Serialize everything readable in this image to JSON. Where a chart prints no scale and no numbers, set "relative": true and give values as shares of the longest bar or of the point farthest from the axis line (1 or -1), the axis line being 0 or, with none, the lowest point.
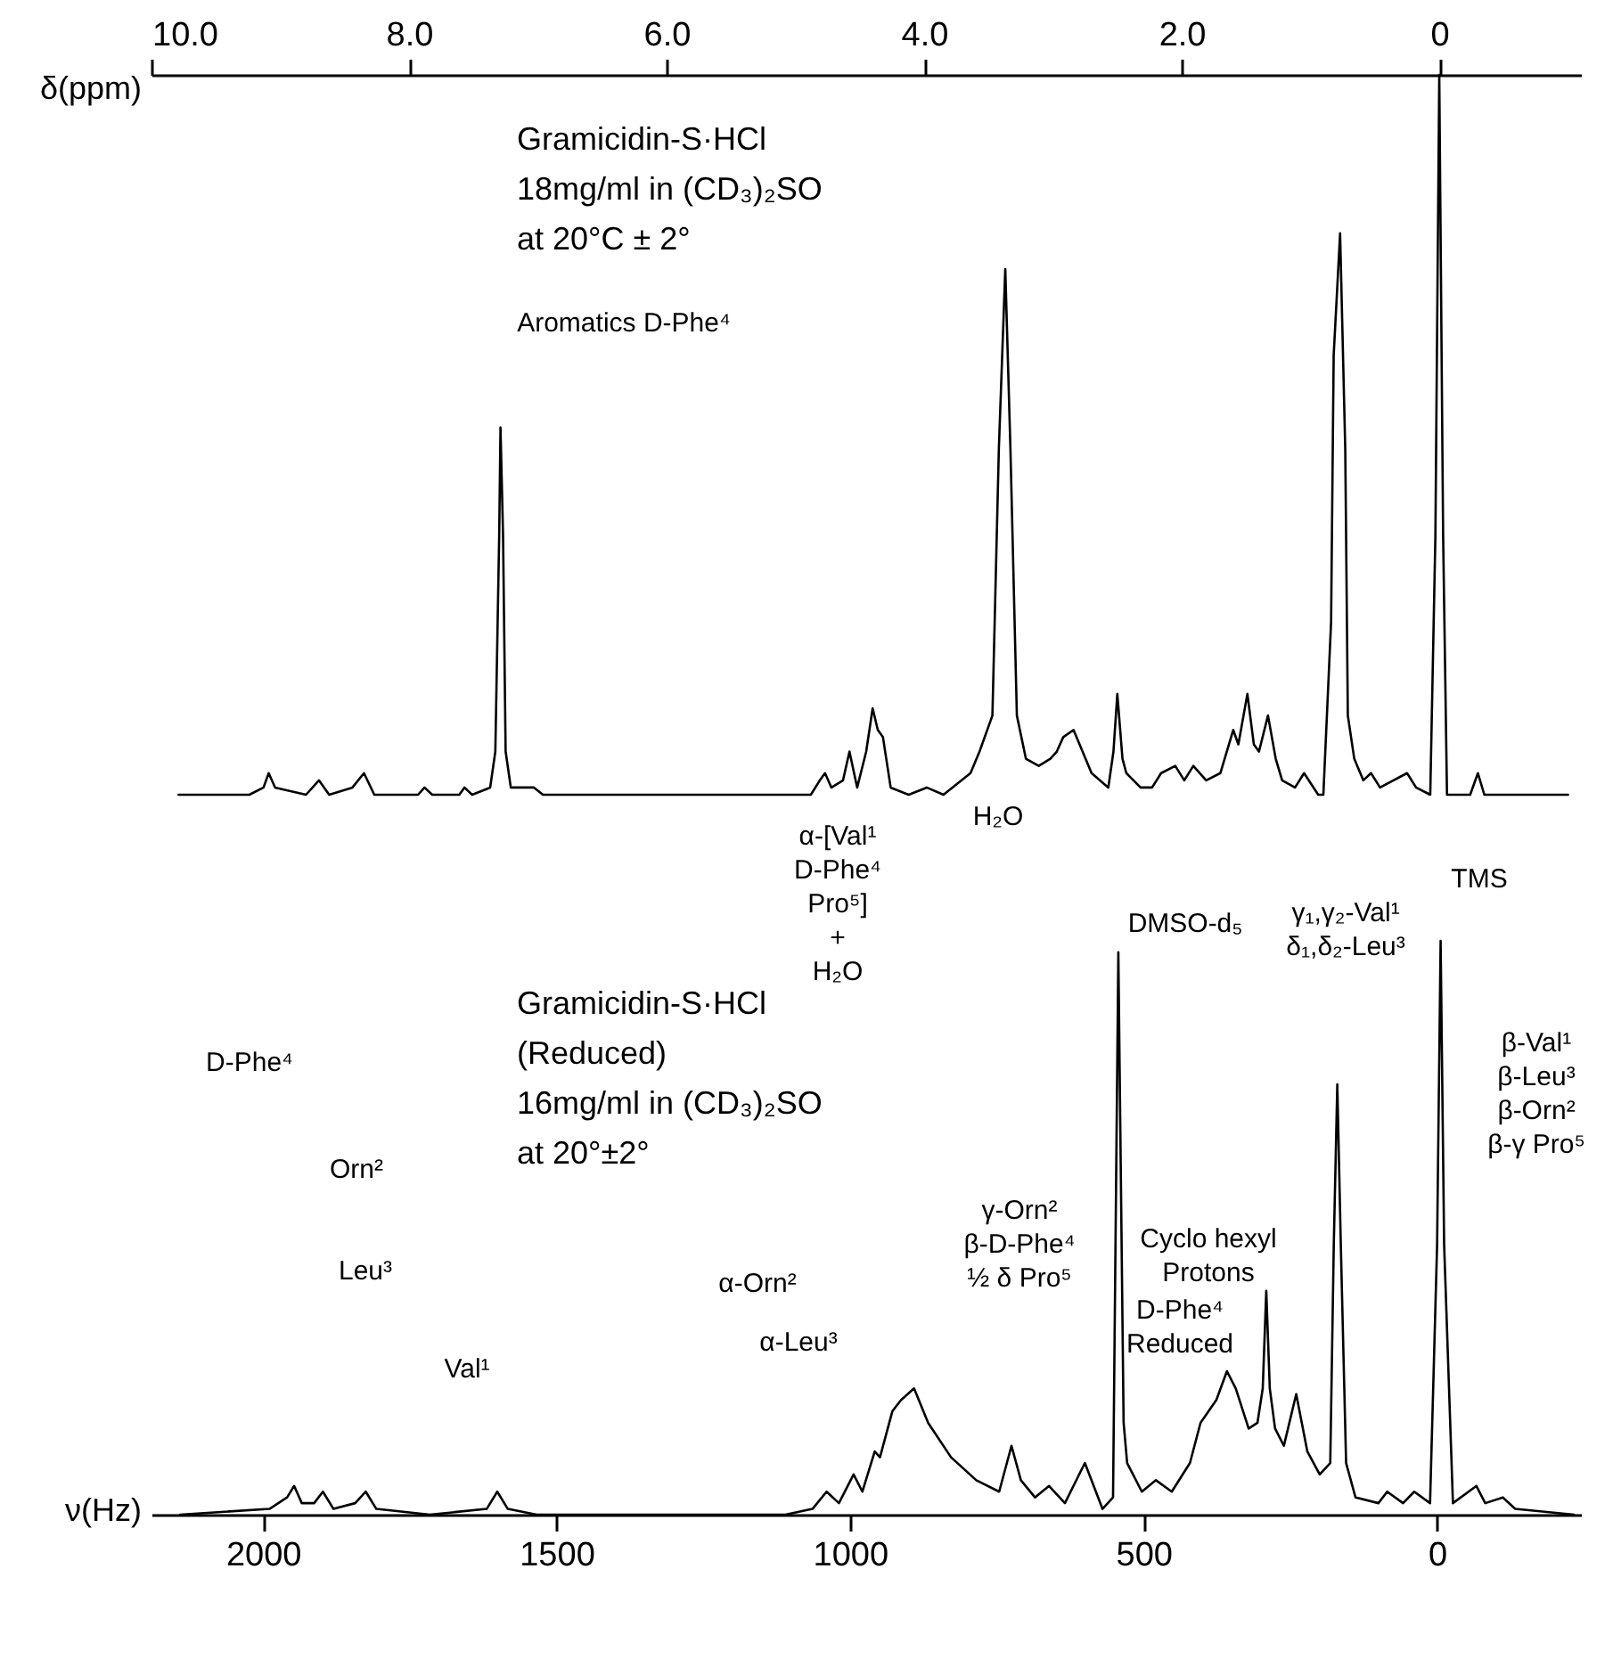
{
  "chart_data": [
    {
      "type": "line",
      "relative": true,
      "xlabel": "δ(ppm)",
      "xlim": [
        10.0,
        -1.1
      ],
      "xticks": [
        {
          "value": 10,
          "label": "10.0"
        },
        {
          "value": 8,
          "label": "8.0"
        },
        {
          "value": 6,
          "label": "6.0"
        },
        {
          "value": 4,
          "label": "4.0"
        },
        {
          "value": 2,
          "label": "2.0"
        },
        0
      ],
      "x": [
        9.79,
        9.24,
        9.13,
        9.09,
        9.04,
        8.8,
        8.7,
        8.62,
        8.44,
        8.35,
        8.27,
        7.93,
        7.88,
        7.82,
        7.61,
        7.57,
        7.51,
        7.37,
        7.33,
        7.3,
        7.29,
        7.27,
        7.25,
        7.21,
        7.03,
        6.96,
        6.61,
        5.64,
        4.88,
        4.81,
        4.77,
        4.72,
        4.63,
        4.58,
        4.52,
        4.45,
        4.4,
        4.36,
        4.32,
        4.26,
        4.12,
        3.98,
        3.85,
        3.64,
        3.57,
        3.47,
        3.42,
        3.37,
        3.33,
        3.28,
        3.21,
        3.11,
        3.02,
        2.97,
        2.92,
        2.84,
        2.77,
        2.7,
        2.57,
        2.53,
        2.5,
        2.46,
        2.43,
        2.32,
        2.23,
        2.16,
        2.05,
        1.98,
        1.91,
        1.81,
        1.7,
        1.6,
        1.56,
        1.49,
        1.44,
        1.4,
        1.33,
        1.27,
        1.22,
        1.12,
        1.05,
        0.94,
        0.9,
        0.84,
        0.82,
        0.77,
        0.73,
        0.71,
        0.66,
        0.59,
        0.53,
        0.46,
        0.25,
        0.18,
        0.07,
        0.03,
        0.0,
        -0.03,
        -0.06,
        -0.24,
        -0.3,
        -0.35,
        -0.58,
        -1.0
      ],
      "series": [
        {
          "color": "#000000",
          "values": [
            0,
            0,
            0.01,
            0.03,
            0.01,
            0,
            0.02,
            0,
            0.01,
            0.03,
            0,
            0,
            0.01,
            0,
            0,
            0.01,
            0,
            0.01,
            0.06,
            0.36,
            0.51,
            0.36,
            0.06,
            0.01,
            0.01,
            0,
            0,
            0,
            0,
            0.02,
            0.03,
            0.01,
            0.02,
            0.06,
            0.01,
            0.06,
            0.12,
            0.09,
            0.08,
            0.01,
            0,
            0.01,
            0,
            0.03,
            0.06,
            0.11,
            0.48,
            0.73,
            0.48,
            0.11,
            0.05,
            0.04,
            0.05,
            0.06,
            0.08,
            0.09,
            0.06,
            0.03,
            0.01,
            0.06,
            0.14,
            0.05,
            0.03,
            0.01,
            0.01,
            0.03,
            0.04,
            0.02,
            0.04,
            0.02,
            0.03,
            0.09,
            0.07,
            0.14,
            0.07,
            0.06,
            0.11,
            0.05,
            0.02,
            0.01,
            0.03,
            0,
            0,
            0.24,
            0.61,
            0.78,
            0.48,
            0.11,
            0.05,
            0.02,
            0.03,
            0.01,
            0.03,
            0.01,
            0,
            0.36,
            1,
            0.36,
            0,
            0,
            0.03,
            0,
            0,
            0
          ]
        }
      ],
      "annotations": [
        "Gramicidin-S·HCl\n18mg/ml in (CD₃)₂SO\nat 20°C ± 2°",
        "Aromatics D-Phe⁴",
        "H₂O"
      ]
    },
    {
      "type": "line",
      "relative": true,
      "xlabel": "ν(Hz)",
      "xlim": [
        2190,
        -245
      ],
      "xticks": [
        2000,
        1500,
        1000,
        500,
        0
      ],
      "x": [
        2141,
        1989,
        1959,
        1947,
        1934,
        1913,
        1898,
        1880,
        1843,
        1825,
        1807,
        1716,
        1619,
        1601,
        1583,
        1534,
        1110,
        1064,
        1040,
        1019,
        994,
        979,
        958,
        949,
        928,
        913,
        891,
        867,
        828,
        785,
        746,
        725,
        709,
        685,
        661,
        634,
        600,
        570,
        552,
        543,
        534,
        528,
        503,
        479,
        452,
        421,
        403,
        376,
        358,
        343,
        321,
        306,
        297,
        291,
        285,
        276,
        261,
        240,
        221,
        200,
        182,
        176,
        170,
        164,
        155,
        139,
        100,
        85,
        58,
        39,
        12,
        0,
        -6,
        -12,
        -27,
        -67,
        -82,
        -112,
        -133,
        -233
      ],
      "series": [
        {
          "color": "#000000",
          "values": [
            0,
            0.01,
            0.03,
            0.05,
            0.02,
            0.02,
            0.04,
            0.01,
            0.02,
            0.04,
            0.01,
            0,
            0.01,
            0.04,
            0.01,
            0,
            0,
            0.01,
            0.04,
            0.02,
            0.07,
            0.04,
            0.11,
            0.1,
            0.18,
            0.2,
            0.22,
            0.16,
            0.1,
            0.06,
            0.04,
            0.12,
            0.06,
            0.03,
            0.05,
            0.02,
            0.09,
            0.01,
            0.03,
            0.98,
            0.16,
            0.09,
            0.04,
            0.06,
            0.04,
            0.09,
            0.16,
            0.2,
            0.25,
            0.22,
            0.15,
            0.16,
            0.22,
            0.39,
            0.22,
            0.15,
            0.12,
            0.21,
            0.11,
            0.07,
            0.09,
            0.47,
            0.75,
            0.47,
            0.09,
            0.03,
            0.02,
            0.04,
            0.02,
            0.04,
            0.02,
            0.47,
            1,
            0.47,
            0.02,
            0.05,
            0.02,
            0.03,
            0.01,
            0
          ]
        }
      ],
      "annotations": [
        "Gramicidin-S·HCl\n(Reduced)\n16mg/ml in (CD₃)₂SO\nat 20°±2°",
        "D-Phe⁴",
        "Orn²",
        "Leu³",
        "Val¹",
        "α-Orn²",
        "α-Leu³",
        "α-[Val¹\nD-Phe⁴\nPro⁵]\n+\nH₂O",
        "γ-Orn²\nβ-D-Phe⁴\n½ δ Pro⁵",
        "DMSO-d₅",
        "γ₁,γ₂-Val¹\nδ₁,δ₂-Leu³",
        "β-Val¹\nβ-Leu³\nβ-Orn²\nβ-γ Pro⁵",
        "Cyclo hexyl\nProtons",
        "D-Phe⁴\nReduced",
        "TMS"
      ]
    }
  ]
}
